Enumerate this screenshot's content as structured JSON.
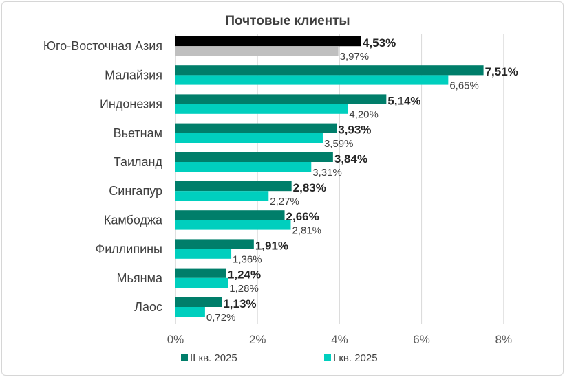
{
  "chart_data": {
    "type": "bar",
    "orientation": "horizontal",
    "title": "Почтовые клиенты",
    "categories": [
      "Юго-Восточная Азия",
      "Малайзия",
      "Индонезия",
      "Вьетнам",
      "Таиланд",
      "Сингапур",
      "Камбоджа",
      "Филлипины",
      "Мьянма",
      "Лаос"
    ],
    "series": [
      {
        "name": "II кв. 2025",
        "color": "#007e6a",
        "highlight_color": "#000000",
        "values": [
          4.53,
          7.51,
          5.14,
          3.93,
          3.84,
          2.83,
          2.66,
          1.91,
          1.24,
          1.13
        ],
        "labels": [
          "4,53%",
          "7,51%",
          "5,14%",
          "3,93%",
          "3,84%",
          "2,83%",
          "2,66%",
          "1,91%",
          "1,24%",
          "1,13%"
        ]
      },
      {
        "name": "I кв. 2025",
        "color": "#00cfbe",
        "highlight_color": "#bfbfbf",
        "values": [
          3.97,
          6.65,
          4.2,
          3.59,
          3.31,
          2.27,
          2.81,
          1.36,
          1.28,
          0.72
        ],
        "labels": [
          "3,97%",
          "6,65%",
          "4,20%",
          "3,59%",
          "3,31%",
          "2,27%",
          "2,81%",
          "1,36%",
          "1,28%",
          "0,72%"
        ]
      }
    ],
    "xlim": [
      0,
      8
    ],
    "xticks": [
      0,
      2,
      4,
      6,
      8
    ],
    "xtick_labels": [
      "0%",
      "2%",
      "4%",
      "6%",
      "8%"
    ],
    "grid": "vertical",
    "legend": "bottom"
  }
}
